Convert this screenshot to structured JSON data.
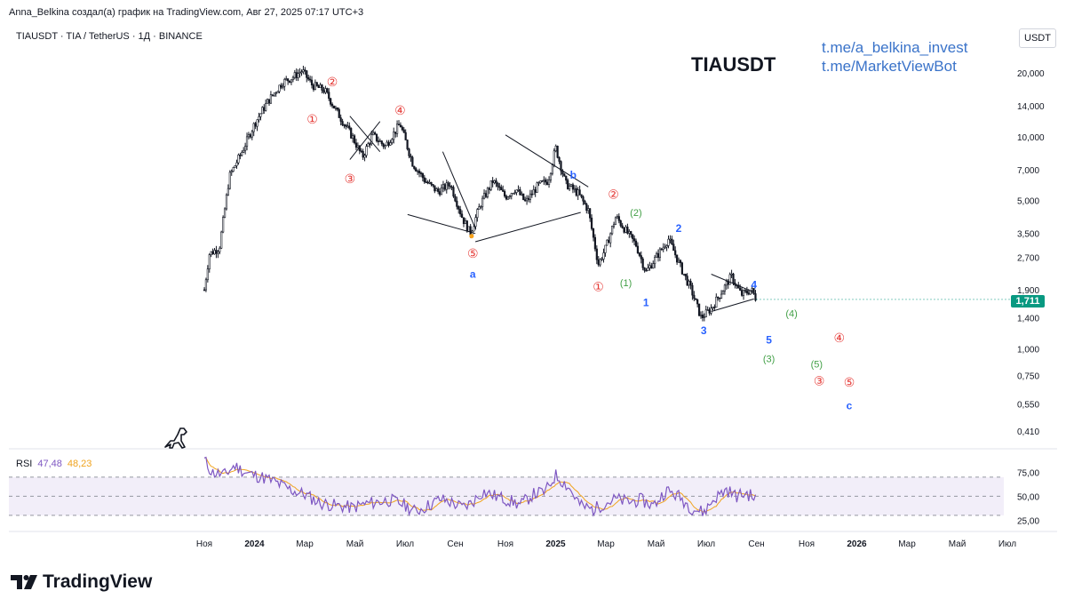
{
  "header": {
    "credit": "Anna_Belkina создал(а) график на TradingView.com, Авг 27, 2025 07:17 UTC+3",
    "symbol_line": "TIAUSDT · TIA / TetherUS · 1Д · BINANCE",
    "title": "TIAUSDT",
    "link1": "t.me/a_belkina_invest",
    "link2": "t.me/MarketViewBot",
    "currency": "USDT",
    "last_price": "1,711"
  },
  "rsi": {
    "label": "RSI",
    "value1": "47,48",
    "value2": "48,23"
  },
  "footer": {
    "brand": "TradingView"
  },
  "colors": {
    "red_wave": "#e53935",
    "green_wave": "#43a047",
    "blue_wave": "#2962ff",
    "orange": "#f7a21b",
    "rsi_line": "#7e57c2",
    "rsi_ma": "#f0a31e",
    "last_price": "#089981"
  },
  "chart_data": {
    "type": "candlestick",
    "title": "TIAUSDT",
    "timeframe": "1D",
    "scale": "log",
    "y_ticks": [
      "20,000",
      "14,000",
      "10,000",
      "7,000",
      "5,000",
      "3,500",
      "2,700",
      "1,900",
      "1,400",
      "1,000",
      "0,750",
      "0,550",
      "0,410"
    ],
    "y_tick_values": [
      20,
      14,
      10,
      7,
      5,
      3.5,
      2.7,
      1.9,
      1.4,
      1.0,
      0.75,
      0.55,
      0.41
    ],
    "x_ticks": [
      "Ноя",
      "2024",
      "Мар",
      "Май",
      "Июл",
      "Сен",
      "Ноя",
      "2025",
      "Мар",
      "Май",
      "Июл",
      "Сен",
      "Ноя",
      "2026",
      "Мар",
      "Май",
      "Июл"
    ],
    "bold_x_ticks": [
      "2024",
      "2025",
      "2026"
    ],
    "x_tick_months": [
      0,
      2,
      4,
      6,
      8,
      10,
      12,
      14,
      16,
      18,
      20,
      22,
      24,
      26,
      28,
      30,
      32
    ],
    "price_path": [
      [
        0,
        1.9
      ],
      [
        0.2,
        2.8
      ],
      [
        0.6,
        3.0
      ],
      [
        1.0,
        6.5
      ],
      [
        1.5,
        8.5
      ],
      [
        2.0,
        11.5
      ],
      [
        2.5,
        14.5
      ],
      [
        3.1,
        18.0
      ],
      [
        3.5,
        19.0
      ],
      [
        3.9,
        20.5
      ],
      [
        4.3,
        17.5
      ],
      [
        4.8,
        16.5
      ],
      [
        5.3,
        13.0
      ],
      [
        5.9,
        10.0
      ],
      [
        6.3,
        8.0
      ],
      [
        6.7,
        10.2
      ],
      [
        7.2,
        9.0
      ],
      [
        7.8,
        11.5
      ],
      [
        8.3,
        7.5
      ],
      [
        8.8,
        6.2
      ],
      [
        9.3,
        5.5
      ],
      [
        9.8,
        6.0
      ],
      [
        10.3,
        4.1
      ],
      [
        10.6,
        3.5
      ],
      [
        11.0,
        4.8
      ],
      [
        11.5,
        6.2
      ],
      [
        12.0,
        5.2
      ],
      [
        12.4,
        5.7
      ],
      [
        12.8,
        4.9
      ],
      [
        13.3,
        5.9
      ],
      [
        13.7,
        6.2
      ],
      [
        14.0,
        8.9
      ],
      [
        14.4,
        6.0
      ],
      [
        14.9,
        5.4
      ],
      [
        15.3,
        4.5
      ],
      [
        15.7,
        2.5
      ],
      [
        16.0,
        3.0
      ],
      [
        16.4,
        4.2
      ],
      [
        16.8,
        3.6
      ],
      [
        17.2,
        3.1
      ],
      [
        17.6,
        2.3
      ],
      [
        18.0,
        2.7
      ],
      [
        18.5,
        3.3
      ],
      [
        19.0,
        2.4
      ],
      [
        19.4,
        1.9
      ],
      [
        19.8,
        1.4
      ],
      [
        20.2,
        1.55
      ],
      [
        20.6,
        1.85
      ],
      [
        21.0,
        2.2
      ],
      [
        21.4,
        1.8
      ],
      [
        21.8,
        1.9
      ],
      [
        22.0,
        1.711
      ]
    ],
    "trend_lines": [
      [
        [
          5.8,
          12.5
        ],
        [
          7.0,
          8.5
        ]
      ],
      [
        [
          5.8,
          7.8
        ],
        [
          7.0,
          11.8
        ]
      ],
      [
        [
          8.1,
          4.3
        ],
        [
          10.8,
          3.5
        ]
      ],
      [
        [
          9.5,
          8.5
        ],
        [
          10.8,
          3.7
        ]
      ],
      [
        [
          10.8,
          3.2
        ],
        [
          15.0,
          4.4
        ]
      ],
      [
        [
          12.0,
          10.2
        ],
        [
          15.3,
          5.8
        ]
      ],
      [
        [
          20.2,
          2.25
        ],
        [
          21.9,
          1.85
        ]
      ],
      [
        [
          20.2,
          1.5
        ],
        [
          21.9,
          1.72
        ]
      ]
    ],
    "wave_labels": [
      {
        "text": "①",
        "m": 4.3,
        "p": 12.0,
        "color": "red"
      },
      {
        "text": "②",
        "m": 5.1,
        "p": 18.0,
        "color": "red"
      },
      {
        "text": "③",
        "m": 5.8,
        "p": 6.3,
        "color": "red"
      },
      {
        "text": "④",
        "m": 7.8,
        "p": 13.2,
        "color": "red"
      },
      {
        "text": "⑤",
        "m": 10.7,
        "p": 2.8,
        "color": "red"
      },
      {
        "text": "a",
        "m": 10.7,
        "p": 2.25,
        "color": "blue"
      },
      {
        "text": "b",
        "m": 14.7,
        "p": 6.6,
        "color": "blue"
      },
      {
        "text": "①",
        "m": 15.7,
        "p": 1.95,
        "color": "red"
      },
      {
        "text": "②",
        "m": 16.3,
        "p": 5.3,
        "color": "red"
      },
      {
        "text": "(1)",
        "m": 16.8,
        "p": 2.05,
        "color": "green"
      },
      {
        "text": "(2)",
        "m": 17.2,
        "p": 4.4,
        "color": "green"
      },
      {
        "text": "1",
        "m": 17.6,
        "p": 1.65,
        "color": "blue"
      },
      {
        "text": "2",
        "m": 18.9,
        "p": 3.7,
        "color": "blue"
      },
      {
        "text": "3",
        "m": 19.9,
        "p": 1.22,
        "color": "blue"
      },
      {
        "text": "4",
        "m": 21.9,
        "p": 2.0,
        "color": "blue"
      },
      {
        "text": "5",
        "m": 22.5,
        "p": 1.1,
        "color": "blue"
      },
      {
        "text": "(3)",
        "m": 22.5,
        "p": 0.9,
        "color": "green"
      },
      {
        "text": "(4)",
        "m": 23.4,
        "p": 1.47,
        "color": "green"
      },
      {
        "text": "(5)",
        "m": 24.4,
        "p": 0.85,
        "color": "green"
      },
      {
        "text": "③",
        "m": 24.5,
        "p": 0.7,
        "color": "red"
      },
      {
        "text": "④",
        "m": 25.3,
        "p": 1.12,
        "color": "red"
      },
      {
        "text": "⑤",
        "m": 25.7,
        "p": 0.69,
        "color": "red"
      },
      {
        "text": "c",
        "m": 25.7,
        "p": 0.54,
        "color": "blue"
      }
    ],
    "rsi": {
      "levels": [
        70,
        50,
        30
      ],
      "y_ticks": [
        "75,00",
        "50,00",
        "25,00"
      ],
      "y_tick_values": [
        75,
        50,
        25
      ],
      "current": 47.48,
      "ma": 48.23,
      "path": [
        [
          0.0,
          88
        ],
        [
          0.3,
          75
        ],
        [
          0.8,
          72
        ],
        [
          1.2,
          82
        ],
        [
          1.7,
          74
        ],
        [
          2.3,
          70
        ],
        [
          2.8,
          65
        ],
        [
          3.5,
          56
        ],
        [
          4.0,
          52
        ],
        [
          4.6,
          43
        ],
        [
          5.3,
          40
        ],
        [
          5.9,
          38
        ],
        [
          6.4,
          42
        ],
        [
          6.9,
          44
        ],
        [
          7.4,
          46
        ],
        [
          7.9,
          42
        ],
        [
          8.4,
          34
        ],
        [
          8.9,
          40
        ],
        [
          9.4,
          47
        ],
        [
          9.8,
          44
        ],
        [
          10.3,
          38
        ],
        [
          10.7,
          44
        ],
        [
          11.1,
          55
        ],
        [
          11.6,
          50
        ],
        [
          12.1,
          46
        ],
        [
          12.6,
          41
        ],
        [
          13.1,
          52
        ],
        [
          13.6,
          55
        ],
        [
          14.0,
          72
        ],
        [
          14.5,
          60
        ],
        [
          15.0,
          40
        ],
        [
          15.5,
          36
        ],
        [
          15.9,
          42
        ],
        [
          16.4,
          47
        ],
        [
          16.9,
          44
        ],
        [
          17.4,
          46
        ],
        [
          17.9,
          40
        ],
        [
          18.4,
          56
        ],
        [
          18.9,
          50
        ],
        [
          19.4,
          38
        ],
        [
          19.9,
          33
        ],
        [
          20.3,
          47
        ],
        [
          20.8,
          57
        ],
        [
          21.2,
          50
        ],
        [
          21.6,
          53
        ],
        [
          22.0,
          47.48
        ]
      ]
    }
  }
}
